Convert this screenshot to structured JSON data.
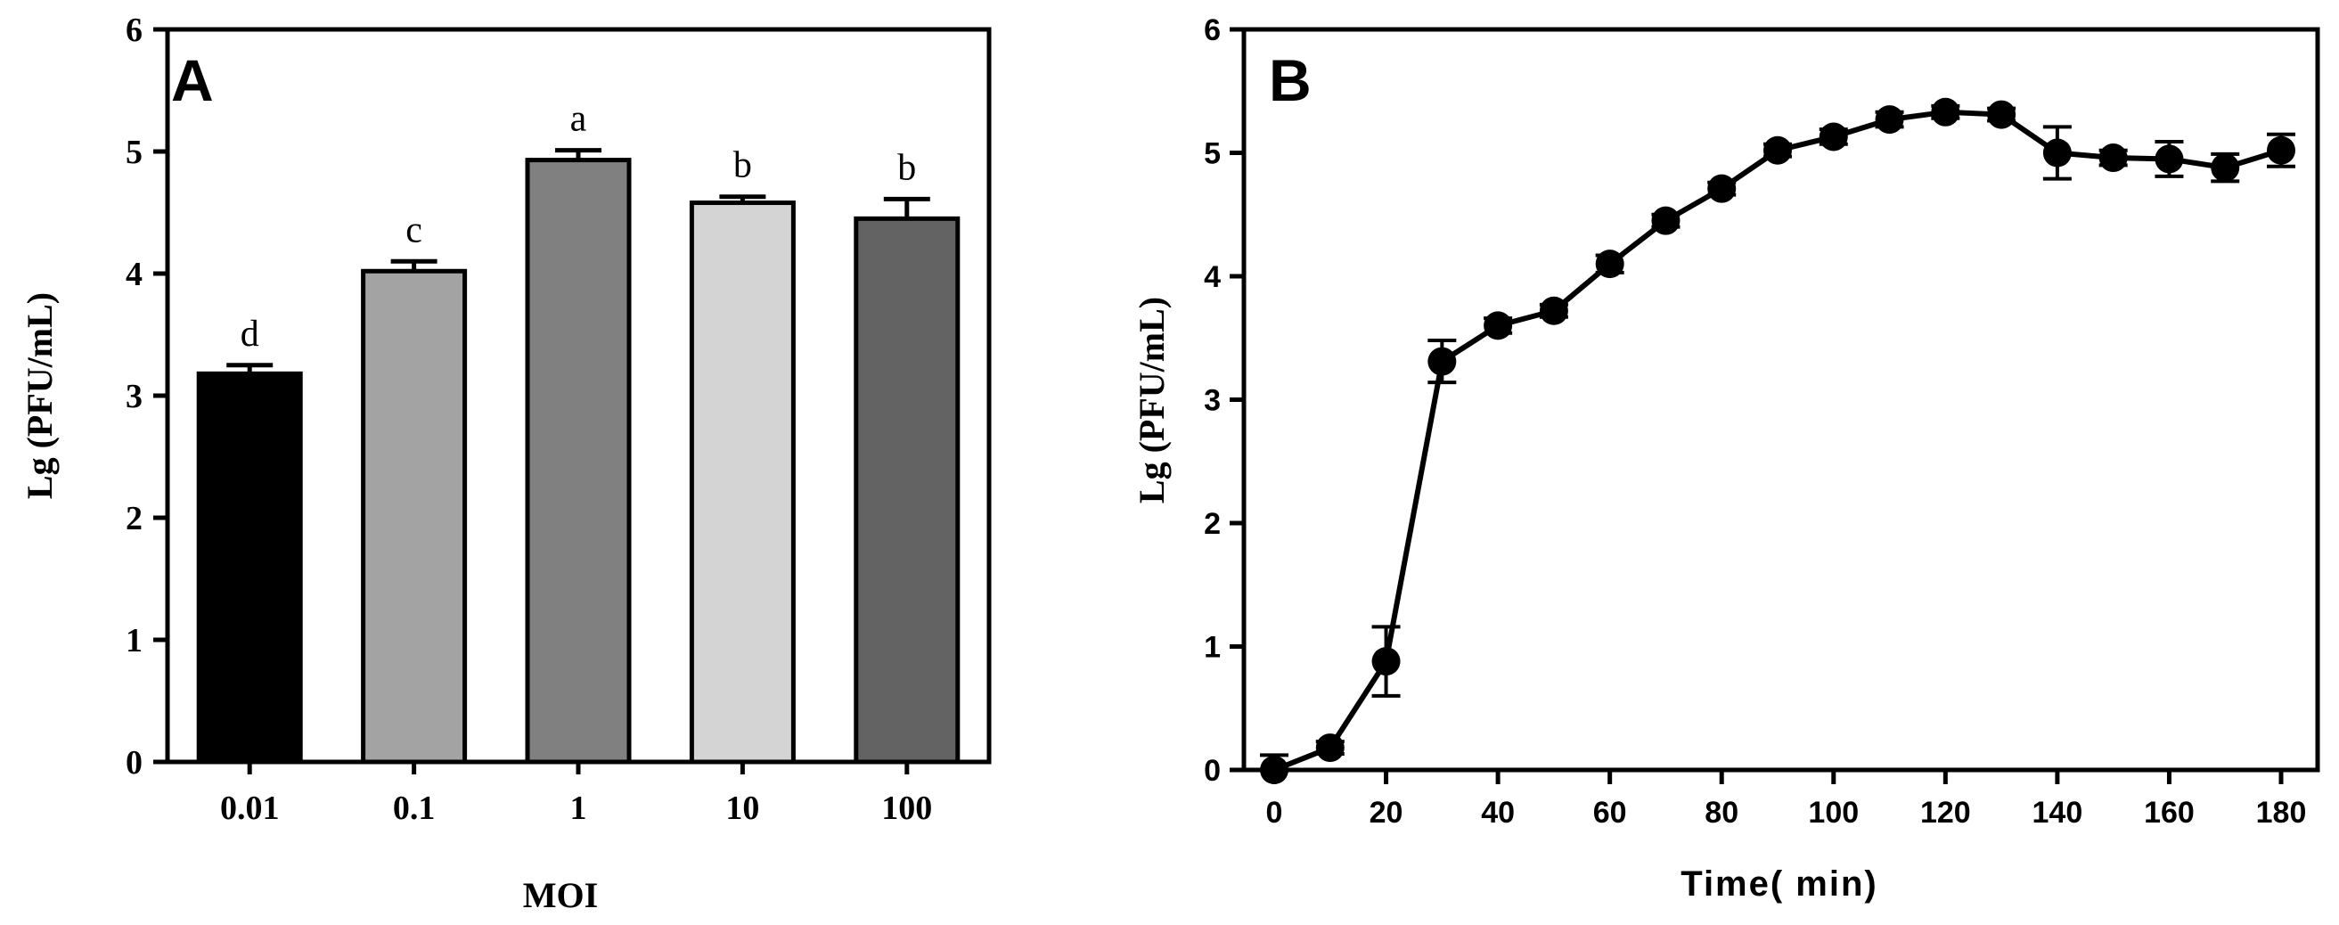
{
  "chart_data": [
    {
      "type": "bar",
      "panel_label": "A",
      "title": "",
      "xlabel": "MOI",
      "ylabel": "Lg (PFU/mL)",
      "ylim": [
        0,
        6
      ],
      "yticks": [
        "0",
        "1",
        "2",
        "3",
        "4",
        "5",
        "6"
      ],
      "categories": [
        "0.01",
        "0.1",
        "1",
        "10",
        "100"
      ],
      "values": [
        3.18,
        4.02,
        4.93,
        4.58,
        4.45
      ],
      "errors": [
        0.07,
        0.08,
        0.08,
        0.05,
        0.16
      ],
      "significance": [
        "d",
        "c",
        "a",
        "b",
        "b"
      ],
      "colors": [
        "#000000",
        "#a3a3a3",
        "#808080",
        "#d4d4d4",
        "#636363"
      ]
    },
    {
      "type": "line",
      "panel_label": "B",
      "title": "",
      "xlabel": "Time( min)",
      "ylabel": "Lg (PFU/mL)",
      "xlim": [
        0,
        180
      ],
      "ylim": [
        0,
        6
      ],
      "xticks": [
        "0",
        "20",
        "40",
        "60",
        "80",
        "100",
        "120",
        "140",
        "160",
        "180"
      ],
      "yticks": [
        "0",
        "1",
        "2",
        "3",
        "4",
        "5",
        "6"
      ],
      "x": [
        0,
        10,
        20,
        30,
        40,
        50,
        60,
        70,
        80,
        90,
        100,
        110,
        120,
        130,
        140,
        150,
        160,
        170,
        180
      ],
      "values": [
        0.0,
        0.18,
        0.88,
        3.31,
        3.6,
        3.72,
        4.1,
        4.45,
        4.71,
        5.02,
        5.13,
        5.27,
        5.33,
        5.31,
        5.0,
        4.96,
        4.95,
        4.88,
        5.02
      ],
      "errors": [
        0.12,
        0.05,
        0.28,
        0.17,
        0.06,
        0.05,
        0.07,
        0.05,
        0.05,
        0.05,
        0.06,
        0.06,
        0.05,
        0.05,
        0.21,
        0.06,
        0.14,
        0.11,
        0.13
      ],
      "color": "#000000"
    }
  ]
}
